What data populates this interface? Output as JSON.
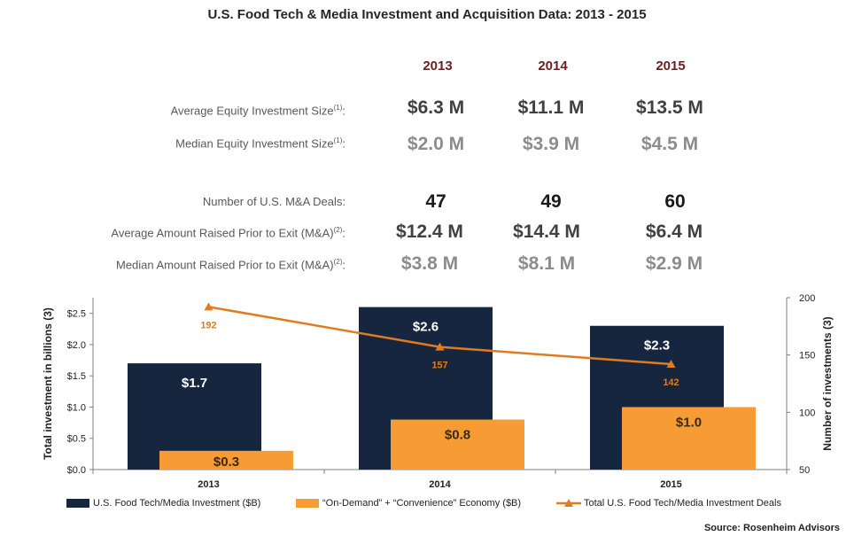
{
  "title": "U.S. Food Tech & Media Investment and Acquisition  Data: 2013 - 2015",
  "years": [
    "2013",
    "2014",
    "2015"
  ],
  "table": {
    "avg_equity": {
      "label": "Average Equity Investment Size",
      "sup": "(1)",
      "values": [
        "$6.3 M",
        "$11.1 M",
        "$13.5 M"
      ]
    },
    "median_equity": {
      "label": "Median Equity Investment Size",
      "sup": "(1)",
      "values": [
        "$2.0 M",
        "$3.9 M",
        "$4.5 M"
      ]
    },
    "ma_deals": {
      "label": "Number of U.S. M&A Deals:",
      "values": [
        "47",
        "49",
        "60"
      ]
    },
    "avg_raised": {
      "label": "Average Amount Raised Prior to Exit (M&A)",
      "sup": "(2)",
      "values": [
        "$12.4 M",
        "$14.4 M",
        "$6.4 M"
      ]
    },
    "median_raised": {
      "label": "Median Amount Raised Prior to Exit (M&A)",
      "sup": "(2)",
      "values": [
        "$3.8 M",
        "$8.1 M",
        "$2.9 M"
      ]
    }
  },
  "chart_data": {
    "type": "bar",
    "categories": [
      "2013",
      "2014",
      "2015"
    ],
    "series": [
      {
        "name": "U.S. Food Tech/Media Investment ($B)",
        "kind": "bar",
        "axis": "left",
        "color": "#17263f",
        "values": [
          1.7,
          2.6,
          2.3
        ],
        "labels": [
          "$1.7",
          "$2.6",
          "$2.3"
        ]
      },
      {
        "name": "“On-Demand” + “Convenience” Economy ($B)",
        "kind": "bar",
        "axis": "left",
        "color": "#f79b34",
        "values": [
          0.3,
          0.8,
          1.0
        ],
        "labels": [
          "$0.3",
          "$0.8",
          "$1.0"
        ]
      },
      {
        "name": "Total U.S. Food Tech/Media Investment Deals",
        "kind": "line",
        "axis": "right",
        "color": "#e07b1f",
        "values": [
          192,
          157,
          142
        ],
        "labels": [
          "192",
          "157",
          "142"
        ]
      }
    ],
    "ylabel": "Total investment in billions (3)",
    "y2label": "Number of investments (3)",
    "ylim": [
      0,
      2.75
    ],
    "y2lim": [
      50,
      200
    ],
    "yticks": [
      "$0.0",
      "$0.5",
      "$1.0",
      "$1.5",
      "$2.0",
      "$2.5"
    ],
    "y2ticks": [
      "50",
      "100",
      "150",
      "200"
    ],
    "legend_position": "bottom"
  },
  "source": "Source:  Rosenheim Advisors"
}
